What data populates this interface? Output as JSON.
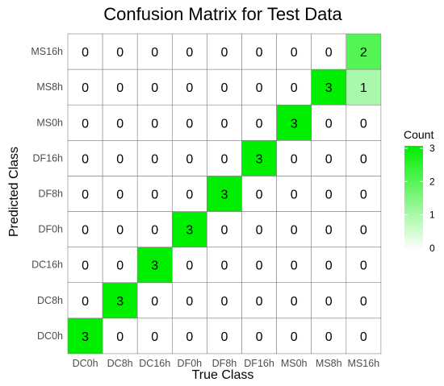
{
  "chart_data": {
    "type": "heatmap",
    "title": "Confusion Matrix for Test Data",
    "xlabel": "True Class",
    "ylabel": "Predicted Class",
    "x_categories": [
      "DC0h",
      "DC8h",
      "DC16h",
      "DF0h",
      "DF8h",
      "DF16h",
      "MS0h",
      "MS8h",
      "MS16h"
    ],
    "y_categories": [
      "DC0h",
      "DC8h",
      "DC16h",
      "DF0h",
      "DF8h",
      "DF16h",
      "MS0h",
      "MS8h",
      "MS16h"
    ],
    "values": [
      [
        3,
        0,
        0,
        0,
        0,
        0,
        0,
        0,
        0
      ],
      [
        0,
        3,
        0,
        0,
        0,
        0,
        0,
        0,
        0
      ],
      [
        0,
        0,
        3,
        0,
        0,
        0,
        0,
        0,
        0
      ],
      [
        0,
        0,
        0,
        3,
        0,
        0,
        0,
        0,
        0
      ],
      [
        0,
        0,
        0,
        0,
        3,
        0,
        0,
        0,
        0
      ],
      [
        0,
        0,
        0,
        0,
        0,
        3,
        0,
        0,
        0
      ],
      [
        0,
        0,
        0,
        0,
        0,
        0,
        3,
        0,
        0
      ],
      [
        0,
        0,
        0,
        0,
        0,
        0,
        0,
        3,
        1
      ],
      [
        0,
        0,
        0,
        0,
        0,
        0,
        0,
        0,
        2
      ]
    ],
    "legend": {
      "title": "Count",
      "range": [
        0,
        3
      ],
      "ticks": [
        0,
        1,
        2,
        3
      ],
      "low_color": "#ffffff",
      "high_color": "#00ee00"
    }
  }
}
